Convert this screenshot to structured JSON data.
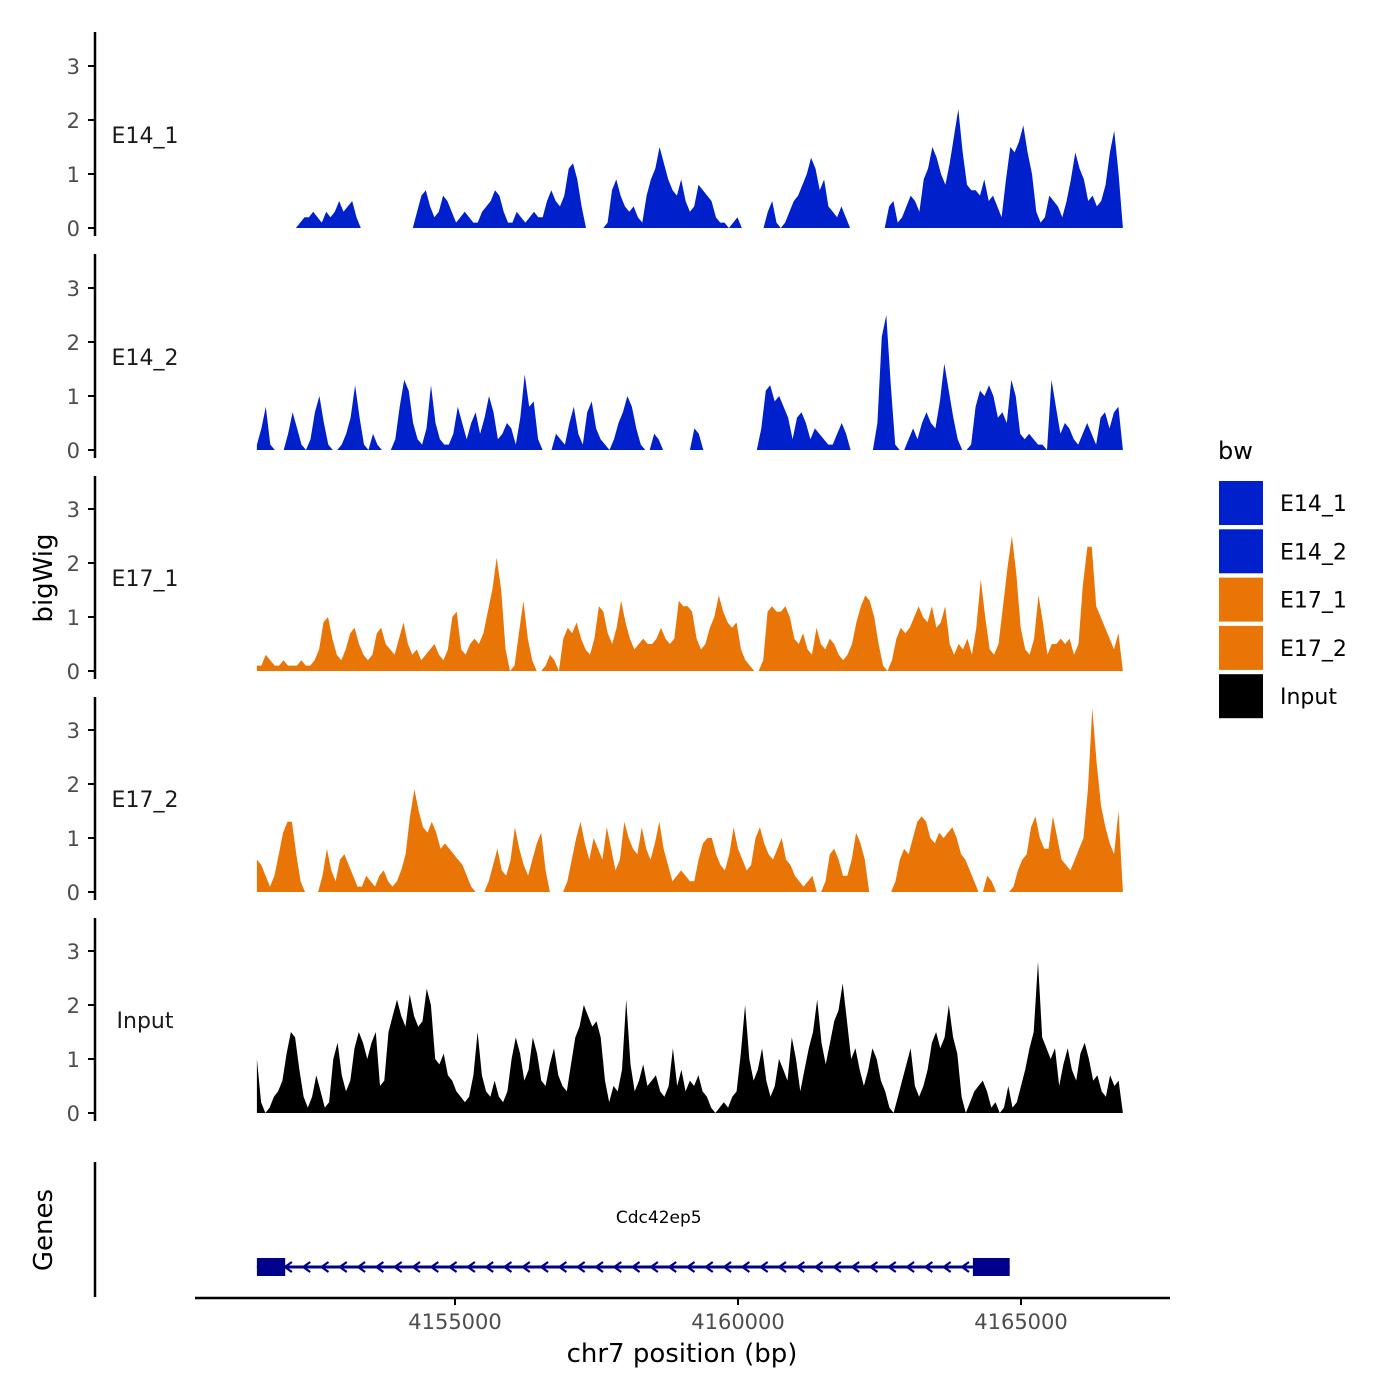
{
  "chart_data": {
    "type": "area",
    "title": "",
    "ylabel": "bigWig",
    "genes_label": "Genes",
    "xlabel": "chr7 position (bp)",
    "x_range": [
      4151500,
      4166800
    ],
    "x_axis_limits": [
      4150200,
      4167300
    ],
    "x_ticks": [
      4155000,
      4160000,
      4165000
    ],
    "x_tick_labels": [
      "4155000",
      "4160000",
      "4165000"
    ],
    "y_range": [
      0,
      3.6
    ],
    "y_ticks": [
      0,
      1,
      2,
      3
    ],
    "y_tick_labels": [
      "0",
      "1",
      "2",
      "3"
    ],
    "legend": {
      "title": "bw",
      "position": "right",
      "entries": [
        {
          "label": "E14_1",
          "color": "#0020cc"
        },
        {
          "label": "E14_2",
          "color": "#0020cc"
        },
        {
          "label": "E17_1",
          "color": "#e87506"
        },
        {
          "label": "E17_2",
          "color": "#e87506"
        },
        {
          "label": "Input",
          "color": "#000000"
        }
      ]
    },
    "series": [
      {
        "name": "E14_1",
        "color": "#0020cc",
        "values": [
          0.0,
          0.0,
          0.0,
          0.0,
          0.0,
          0.0,
          0.0,
          0.0,
          0.0,
          0.0,
          0.1,
          0.2,
          0.2,
          0.3,
          0.2,
          0.1,
          0.3,
          0.2,
          0.3,
          0.5,
          0.3,
          0.4,
          0.5,
          0.2,
          0.0,
          0.0,
          0.0,
          0.0,
          0.0,
          0.0,
          0.0,
          0.0,
          0.0,
          0.0,
          0.0,
          0.0,
          0.0,
          0.3,
          0.6,
          0.7,
          0.4,
          0.2,
          0.3,
          0.6,
          0.5,
          0.3,
          0.1,
          0.2,
          0.3,
          0.2,
          0.1,
          0.1,
          0.3,
          0.4,
          0.5,
          0.7,
          0.6,
          0.3,
          0.1,
          0.1,
          0.3,
          0.2,
          0.1,
          0.2,
          0.3,
          0.2,
          0.2,
          0.5,
          0.7,
          0.5,
          0.4,
          0.6,
          1.1,
          1.2,
          0.9,
          0.4,
          0.0,
          0.0,
          0.0,
          0.0,
          0.0,
          0.1,
          0.7,
          0.9,
          0.6,
          0.4,
          0.3,
          0.4,
          0.2,
          0.1,
          0.6,
          0.9,
          1.1,
          1.5,
          1.2,
          0.9,
          0.7,
          0.6,
          0.9,
          0.5,
          0.3,
          0.4,
          0.8,
          0.7,
          0.6,
          0.5,
          0.2,
          0.1,
          0.1,
          0.0,
          0.1,
          0.2,
          0.0,
          0.0,
          0.0,
          0.0,
          0.0,
          0.0,
          0.3,
          0.5,
          0.1,
          0.0,
          0.1,
          0.3,
          0.5,
          0.6,
          0.8,
          1.0,
          1.3,
          1.1,
          0.7,
          0.9,
          0.4,
          0.3,
          0.2,
          0.4,
          0.2,
          0.0,
          0.0,
          0.0,
          0.0,
          0.0,
          0.0,
          0.0,
          0.0,
          0.0,
          0.4,
          0.5,
          0.1,
          0.2,
          0.4,
          0.6,
          0.5,
          0.3,
          0.9,
          1.1,
          1.5,
          1.3,
          1.0,
          0.8,
          1.2,
          1.7,
          2.2,
          1.4,
          0.8,
          0.7,
          0.7,
          0.6,
          0.9,
          0.5,
          0.6,
          0.4,
          0.2,
          0.9,
          1.5,
          1.4,
          1.6,
          1.9,
          1.4,
          1.0,
          0.3,
          0.1,
          0.2,
          0.6,
          0.5,
          0.4,
          0.2,
          0.5,
          0.9,
          1.4,
          1.1,
          0.9,
          0.5,
          0.6,
          0.4,
          0.5,
          0.8,
          1.4,
          1.8,
          1.0,
          0.0
        ]
      },
      {
        "name": "E14_2",
        "color": "#0020cc",
        "values": [
          0.1,
          0.4,
          0.8,
          0.1,
          0.0,
          0.0,
          0.0,
          0.3,
          0.7,
          0.4,
          0.1,
          0.0,
          0.2,
          0.7,
          1.0,
          0.5,
          0.1,
          0.0,
          0.0,
          0.1,
          0.3,
          0.6,
          1.2,
          0.6,
          0.1,
          0.0,
          0.3,
          0.1,
          0.0,
          0.0,
          0.0,
          0.2,
          0.8,
          1.3,
          1.1,
          0.5,
          0.2,
          0.1,
          0.4,
          1.2,
          0.5,
          0.2,
          0.1,
          0.1,
          0.3,
          0.8,
          0.5,
          0.2,
          0.5,
          0.7,
          0.3,
          0.6,
          1.0,
          0.7,
          0.2,
          0.3,
          0.5,
          0.4,
          0.1,
          0.6,
          1.4,
          0.8,
          0.9,
          0.2,
          0.0,
          0.0,
          0.0,
          0.3,
          0.2,
          0.1,
          0.5,
          0.8,
          0.3,
          0.1,
          0.7,
          0.9,
          0.4,
          0.2,
          0.1,
          0.0,
          0.2,
          0.5,
          0.7,
          1.0,
          0.8,
          0.4,
          0.1,
          0.0,
          0.0,
          0.3,
          0.2,
          0.0,
          0.0,
          0.0,
          0.0,
          0.0,
          0.0,
          0.0,
          0.4,
          0.3,
          0.0,
          0.0,
          0.0,
          0.0,
          0.0,
          0.0,
          0.0,
          0.0,
          0.0,
          0.0,
          0.0,
          0.0,
          0.0,
          0.4,
          1.1,
          1.2,
          0.9,
          1.0,
          0.8,
          0.6,
          0.2,
          0.6,
          0.7,
          0.5,
          0.2,
          0.4,
          0.3,
          0.2,
          0.1,
          0.1,
          0.3,
          0.5,
          0.3,
          0.0,
          0.0,
          0.0,
          0.0,
          0.0,
          0.0,
          0.5,
          2.1,
          2.5,
          1.2,
          0.1,
          0.0,
          0.0,
          0.2,
          0.4,
          0.2,
          0.5,
          0.7,
          0.5,
          0.4,
          0.9,
          1.6,
          1.1,
          0.6,
          0.2,
          0.0,
          0.0,
          0.1,
          0.8,
          1.1,
          1.0,
          1.2,
          1.0,
          0.6,
          0.7,
          0.5,
          1.3,
          1.0,
          0.3,
          0.2,
          0.3,
          0.2,
          0.1,
          0.1,
          0.0,
          1.3,
          0.8,
          0.3,
          0.5,
          0.4,
          0.2,
          0.1,
          0.3,
          0.5,
          0.3,
          0.1,
          0.6,
          0.7,
          0.4,
          0.7,
          0.8,
          0.0
        ]
      },
      {
        "name": "E17_1",
        "color": "#e87506",
        "values": [
          0.1,
          0.1,
          0.3,
          0.2,
          0.1,
          0.1,
          0.2,
          0.1,
          0.1,
          0.1,
          0.2,
          0.1,
          0.1,
          0.2,
          0.4,
          0.9,
          1.0,
          0.6,
          0.3,
          0.2,
          0.4,
          0.7,
          0.8,
          0.5,
          0.3,
          0.2,
          0.3,
          0.7,
          0.8,
          0.5,
          0.4,
          0.3,
          0.6,
          0.9,
          0.5,
          0.3,
          0.4,
          0.2,
          0.3,
          0.4,
          0.5,
          0.3,
          0.2,
          0.4,
          1.0,
          1.1,
          0.4,
          0.3,
          0.5,
          0.6,
          0.5,
          0.7,
          1.1,
          1.5,
          2.1,
          1.5,
          0.4,
          0.0,
          0.1,
          0.7,
          1.3,
          0.6,
          0.2,
          0.0,
          0.0,
          0.1,
          0.3,
          0.2,
          0.0,
          0.6,
          0.8,
          0.7,
          0.9,
          0.6,
          0.4,
          0.3,
          0.6,
          1.2,
          1.1,
          0.7,
          0.5,
          0.8,
          1.3,
          0.9,
          0.6,
          0.4,
          0.5,
          0.6,
          0.5,
          0.5,
          0.6,
          0.8,
          0.6,
          0.5,
          0.6,
          1.3,
          1.2,
          1.2,
          1.1,
          0.6,
          0.4,
          0.5,
          0.8,
          1.0,
          1.4,
          1.1,
          0.9,
          0.8,
          0.9,
          0.4,
          0.2,
          0.1,
          0.0,
          0.0,
          0.2,
          1.1,
          1.2,
          1.1,
          1.1,
          1.2,
          1.0,
          0.6,
          0.5,
          0.7,
          0.4,
          0.3,
          0.8,
          0.5,
          0.4,
          0.6,
          0.5,
          0.3,
          0.2,
          0.3,
          0.5,
          0.9,
          1.2,
          1.4,
          1.3,
          1.0,
          0.5,
          0.1,
          0.0,
          0.2,
          0.6,
          0.8,
          0.7,
          0.8,
          1.0,
          1.2,
          1.0,
          0.9,
          1.2,
          0.8,
          0.9,
          1.2,
          0.5,
          0.3,
          0.5,
          0.4,
          0.6,
          0.3,
          0.8,
          1.7,
          1.0,
          0.4,
          0.3,
          0.5,
          1.2,
          1.9,
          2.5,
          1.8,
          0.8,
          0.4,
          0.3,
          0.6,
          1.4,
          0.9,
          0.3,
          0.5,
          0.5,
          0.6,
          0.5,
          0.6,
          0.3,
          0.5,
          1.6,
          2.3,
          2.3,
          1.2,
          1.0,
          0.8,
          0.6,
          0.4,
          0.7,
          0.0
        ]
      },
      {
        "name": "E17_2",
        "color": "#e87506",
        "values": [
          0.6,
          0.5,
          0.3,
          0.1,
          0.3,
          0.7,
          1.1,
          1.3,
          1.3,
          0.7,
          0.2,
          0.0,
          0.0,
          0.0,
          0.0,
          0.3,
          0.8,
          0.4,
          0.2,
          0.6,
          0.7,
          0.5,
          0.3,
          0.1,
          0.1,
          0.3,
          0.2,
          0.1,
          0.3,
          0.4,
          0.2,
          0.1,
          0.2,
          0.4,
          0.7,
          1.4,
          1.9,
          1.5,
          1.2,
          1.1,
          1.3,
          1.1,
          0.8,
          0.9,
          0.8,
          0.7,
          0.6,
          0.5,
          0.3,
          0.1,
          0.0,
          0.0,
          0.0,
          0.2,
          0.5,
          0.8,
          0.4,
          0.3,
          0.6,
          1.2,
          0.8,
          0.5,
          0.3,
          0.6,
          0.9,
          1.1,
          0.4,
          0.0,
          0.0,
          0.0,
          0.0,
          0.2,
          0.6,
          1.0,
          1.3,
          0.9,
          0.6,
          1.0,
          0.8,
          0.6,
          1.2,
          0.8,
          0.4,
          0.6,
          1.3,
          1.0,
          0.8,
          0.7,
          1.2,
          0.8,
          0.6,
          0.9,
          1.3,
          0.8,
          0.5,
          0.2,
          0.3,
          0.4,
          0.3,
          0.2,
          0.2,
          0.6,
          0.9,
          1.0,
          1.0,
          0.7,
          0.5,
          0.4,
          0.7,
          1.2,
          0.8,
          0.6,
          0.4,
          0.5,
          1.0,
          1.2,
          0.9,
          0.7,
          0.6,
          0.8,
          1.0,
          0.6,
          0.5,
          0.3,
          0.2,
          0.1,
          0.2,
          0.3,
          0.0,
          0.0,
          0.2,
          0.7,
          0.8,
          0.6,
          0.3,
          0.3,
          0.6,
          1.1,
          0.9,
          0.6,
          0.0,
          0.0,
          0.0,
          0.0,
          0.0,
          0.0,
          0.2,
          0.6,
          0.8,
          0.7,
          1.0,
          1.3,
          1.4,
          1.3,
          1.0,
          0.9,
          1.1,
          1.0,
          1.1,
          1.2,
          1.0,
          0.7,
          0.6,
          0.4,
          0.2,
          0.0,
          0.0,
          0.3,
          0.2,
          0.0,
          0.0,
          0.0,
          0.0,
          0.1,
          0.4,
          0.6,
          0.7,
          1.2,
          1.4,
          1.0,
          0.8,
          0.8,
          1.4,
          1.0,
          0.6,
          0.5,
          0.4,
          0.6,
          0.8,
          1.0,
          1.9,
          3.4,
          2.4,
          1.6,
          1.2,
          0.9,
          0.7,
          1.5,
          0.0
        ]
      },
      {
        "name": "Input",
        "color": "#000000",
        "values": [
          1.0,
          0.2,
          0.0,
          0.1,
          0.3,
          0.4,
          0.6,
          1.1,
          1.5,
          1.4,
          0.8,
          0.3,
          0.1,
          0.3,
          0.7,
          0.4,
          0.1,
          0.2,
          1.0,
          1.3,
          0.7,
          0.4,
          0.6,
          1.2,
          1.5,
          1.3,
          1.0,
          1.3,
          1.5,
          0.5,
          0.6,
          1.5,
          1.8,
          2.1,
          1.8,
          1.6,
          2.2,
          1.8,
          1.6,
          1.7,
          2.3,
          2.0,
          1.0,
          0.9,
          1.1,
          0.7,
          0.6,
          0.4,
          0.3,
          0.2,
          0.3,
          0.7,
          1.5,
          0.7,
          0.4,
          0.3,
          0.6,
          0.3,
          0.2,
          0.4,
          1.0,
          1.4,
          1.1,
          0.6,
          0.8,
          1.4,
          1.1,
          0.6,
          0.5,
          0.9,
          1.2,
          0.7,
          0.5,
          0.4,
          0.9,
          1.4,
          1.6,
          2.0,
          1.8,
          1.6,
          1.7,
          1.4,
          0.6,
          0.2,
          0.5,
          0.4,
          0.8,
          2.1,
          0.9,
          0.4,
          0.6,
          0.9,
          0.5,
          0.6,
          0.7,
          0.4,
          0.3,
          0.5,
          1.2,
          0.5,
          0.8,
          0.4,
          0.6,
          0.5,
          0.7,
          0.4,
          0.3,
          0.1,
          0.0,
          0.1,
          0.2,
          0.1,
          0.3,
          0.4,
          1.1,
          2.0,
          1.0,
          0.6,
          0.8,
          1.2,
          0.6,
          0.3,
          0.5,
          1.0,
          0.8,
          0.6,
          1.4,
          1.0,
          0.4,
          0.8,
          1.2,
          1.5,
          2.1,
          1.3,
          0.9,
          1.3,
          1.7,
          1.9,
          2.4,
          1.7,
          1.0,
          1.2,
          0.8,
          0.5,
          0.8,
          1.2,
          1.0,
          0.6,
          0.4,
          0.1,
          0.0,
          0.3,
          0.6,
          0.9,
          1.2,
          0.5,
          0.3,
          0.5,
          0.8,
          1.3,
          1.5,
          1.2,
          1.4,
          2.0,
          1.4,
          1.1,
          0.3,
          0.0,
          0.2,
          0.4,
          0.5,
          0.6,
          0.4,
          0.1,
          0.2,
          0.0,
          0.1,
          0.5,
          0.1,
          0.2,
          0.5,
          0.8,
          1.2,
          1.5,
          2.8,
          1.4,
          1.2,
          1.0,
          1.2,
          0.5,
          0.9,
          1.2,
          0.8,
          0.6,
          1.1,
          1.3,
          1.0,
          0.6,
          0.7,
          0.4,
          0.3,
          0.7,
          0.5,
          0.6,
          0.0
        ]
      }
    ],
    "track_labels": [
      "E14_1",
      "E14_2",
      "E17_1",
      "E17_2",
      "Input"
    ],
    "genes": [
      {
        "name": "Cdc42ep5",
        "start": 4151500,
        "end": 4164800,
        "strand": "-",
        "color": "#00008b",
        "exons": [
          [
            4151500,
            4152000
          ],
          [
            4164150,
            4164800
          ]
        ]
      }
    ]
  }
}
